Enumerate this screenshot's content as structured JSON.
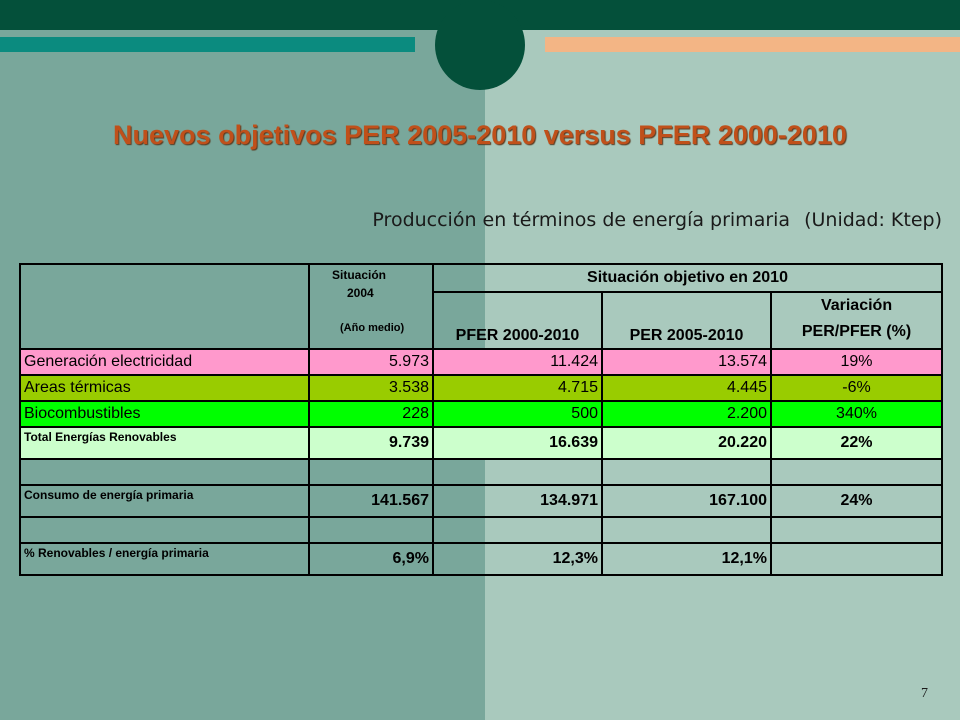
{
  "slide": {
    "title": "Nuevos objetivos PER 2005-2010 versus PFER 2000-2010",
    "subtitle": "Producción en términos de energía primaria",
    "unit": "(Unidad: Ktep)",
    "page_number": "7"
  },
  "colors": {
    "dark_green": "#04503a",
    "teal": "#0b8b7f",
    "orange": "#f3b585",
    "title_orange": "#c0501a",
    "row_pink": "#ff99cc",
    "row_olive": "#99cc00",
    "row_green": "#00ff00",
    "row_light": "#ccffcc"
  },
  "table": {
    "header": {
      "situacion_line1": "Situación",
      "situacion_line2": "2004",
      "situacion_line3": "(Año medio)",
      "objetivo": "Situación objetivo en  2010",
      "col_pfer": "PFER 2000-2010",
      "col_per": "PER 2005-2010",
      "col_var_line1": "Variación",
      "col_var_line2": "PER/PFER (%)"
    },
    "rows": [
      {
        "label": "Generación electricidad",
        "sit2004": "5.973",
        "pfer": "11.424",
        "per": "13.574",
        "var": "19%"
      },
      {
        "label": "Areas térmicas",
        "sit2004": "3.538",
        "pfer": "4.715",
        "per": "4.445",
        "var": "-6%"
      },
      {
        "label": "Biocombustibles",
        "sit2004": "228",
        "pfer": "500",
        "per": "2.200",
        "var": "340%"
      },
      {
        "label": "Total Energías Renovables",
        "sit2004": "9.739",
        "pfer": "16.639",
        "per": "20.220",
        "var": "22%"
      },
      {
        "label": "Consumo de energía primaria",
        "sit2004": "141.567",
        "pfer": "134.971",
        "per": "167.100",
        "var": "24%"
      },
      {
        "label": "% Renovables / energía primaria",
        "sit2004": "6,9%",
        "pfer": "12,3%",
        "per": "12,1%",
        "var": ""
      }
    ]
  }
}
